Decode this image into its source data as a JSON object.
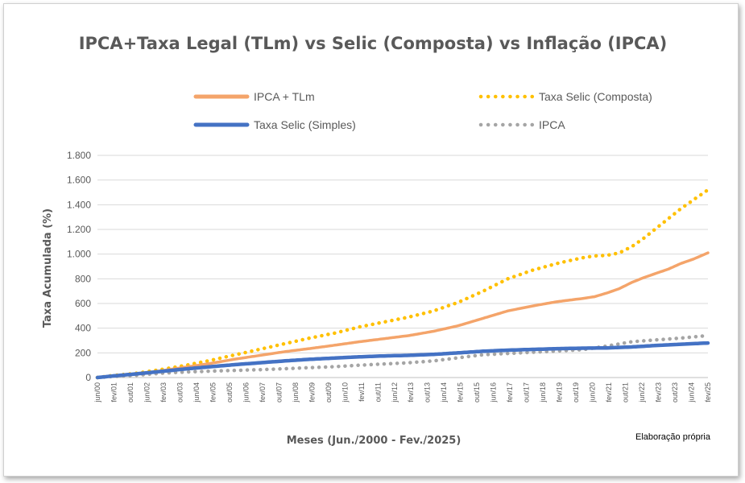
{
  "chart_data": {
    "type": "line",
    "title": "IPCA+Taxa Legal (TLm) vs Selic (Composta) vs Inflação (IPCA)",
    "xlabel": "Meses (Jun./2000 - Fev./2025)",
    "ylabel": "Taxa Acumulada (%)",
    "note": "Elaboração própria",
    "ylim": [
      0,
      1800
    ],
    "yticks": [
      0,
      200,
      400,
      600,
      800,
      1000,
      1200,
      1400,
      1600,
      1800
    ],
    "ytick_labels": [
      "0",
      "200",
      "400",
      "600",
      "800",
      "1.000",
      "1.200",
      "1.400",
      "1.600",
      "1.800"
    ],
    "grid": true,
    "legend_position": "top",
    "x_start": "2000-06",
    "x_end": "2025-02",
    "x_tick_labels": [
      "jun/00",
      "fev/01",
      "out/01",
      "jun/02",
      "fev/03",
      "out/03",
      "jun/04",
      "fev/05",
      "out/05",
      "jun/06",
      "fev/07",
      "out/07",
      "jun/08",
      "fev/09",
      "out/09",
      "jun/10",
      "fev/11",
      "out/11",
      "jun/12",
      "fev/13",
      "out/13",
      "jun/14",
      "fev/15",
      "out/15",
      "jun/16",
      "fev/17",
      "out/17",
      "jun/18",
      "fev/19",
      "out/19",
      "jun/20",
      "fev/21",
      "out/21",
      "jun/22",
      "fev/23",
      "out/23",
      "jun/24",
      "fev/25"
    ],
    "series": [
      {
        "name": "IPCA + TLm",
        "color": "#F4A46A",
        "style": "solid",
        "x_years": [
          2000.42,
          2001,
          2002,
          2003,
          2004,
          2005,
          2006,
          2007,
          2008,
          2009,
          2010,
          2011,
          2012,
          2013,
          2014,
          2015,
          2016,
          2017,
          2018,
          2019,
          2020,
          2020.5,
          2021,
          2021.5,
          2022,
          2022.5,
          2023,
          2023.5,
          2024,
          2024.5,
          2025.08
        ],
        "values": [
          0,
          12,
          30,
          55,
          85,
          115,
          150,
          180,
          210,
          235,
          262,
          290,
          315,
          340,
          375,
          420,
          480,
          540,
          580,
          615,
          640,
          655,
          685,
          720,
          770,
          810,
          845,
          880,
          925,
          960,
          1010
        ]
      },
      {
        "name": "Taxa Selic (Composta)",
        "color": "#FFC000",
        "style": "dotted",
        "x_years": [
          2000.42,
          2001,
          2002,
          2003,
          2004,
          2005,
          2006,
          2007,
          2008,
          2009,
          2010,
          2011,
          2012,
          2013,
          2014,
          2015,
          2016,
          2017,
          2018,
          2019,
          2020,
          2020.5,
          2021,
          2021.5,
          2022,
          2022.5,
          2023,
          2023.5,
          2024,
          2024.5,
          2025.08
        ],
        "values": [
          0,
          15,
          35,
          65,
          100,
          140,
          185,
          230,
          275,
          320,
          360,
          410,
          450,
          490,
          540,
          610,
          700,
          800,
          870,
          925,
          970,
          985,
          990,
          1010,
          1060,
          1130,
          1210,
          1290,
          1370,
          1440,
          1520
        ]
      },
      {
        "name": "Taxa Selic (Simples)",
        "color": "#4472C4",
        "style": "solid-thick",
        "x_years": [
          2000.42,
          2001,
          2002,
          2003,
          2004,
          2005,
          2006,
          2007,
          2008,
          2009,
          2010,
          2011,
          2012,
          2013,
          2014,
          2015,
          2016,
          2017,
          2018,
          2019,
          2020,
          2021,
          2022,
          2023,
          2024,
          2025.08
        ],
        "values": [
          0,
          12,
          30,
          50,
          70,
          88,
          105,
          120,
          135,
          148,
          158,
          168,
          175,
          180,
          188,
          200,
          213,
          222,
          228,
          234,
          238,
          240,
          248,
          260,
          270,
          280
        ]
      },
      {
        "name": "IPCA",
        "color": "#A5A5A5",
        "style": "dotted",
        "x_years": [
          2000.42,
          2001,
          2002,
          2003,
          2004,
          2005,
          2006,
          2007,
          2008,
          2009,
          2010,
          2011,
          2012,
          2013,
          2014,
          2015,
          2016,
          2017,
          2018,
          2019,
          2020,
          2021,
          2022,
          2023,
          2024,
          2025.08
        ],
        "values": [
          0,
          8,
          18,
          35,
          45,
          52,
          58,
          64,
          72,
          80,
          88,
          100,
          110,
          120,
          135,
          160,
          185,
          195,
          205,
          215,
          225,
          255,
          290,
          305,
          320,
          340
        ]
      }
    ]
  }
}
